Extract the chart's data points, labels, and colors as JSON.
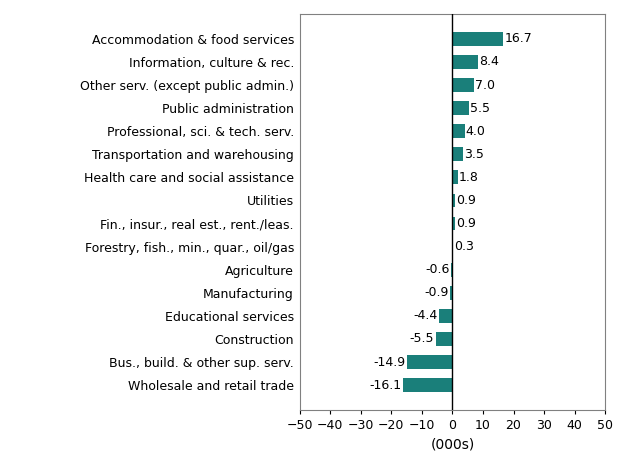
{
  "categories": [
    "Wholesale and retail trade",
    "Bus., build. & other sup. serv.",
    "Construction",
    "Educational services",
    "Manufacturing",
    "Agriculture",
    "Forestry, fish., min., quar., oil/gas",
    "Fin., insur., real est., rent./leas.",
    "Utilities",
    "Health care and social assistance",
    "Transportation and warehousing",
    "Professional, sci. & tech. serv.",
    "Public administration",
    "Other serv. (except public admin.)",
    "Information, culture & rec.",
    "Accommodation & food services"
  ],
  "values": [
    -16.1,
    -14.9,
    -5.5,
    -4.4,
    -0.9,
    -0.6,
    0.3,
    0.9,
    0.9,
    1.8,
    3.5,
    4.0,
    5.5,
    7.0,
    8.4,
    16.7
  ],
  "bar_color": "#1a7f7a",
  "xlabel": "(000s)",
  "xlim": [
    -50,
    50
  ],
  "xticks": [
    -50,
    -40,
    -30,
    -20,
    -10,
    0,
    10,
    20,
    30,
    40,
    50
  ],
  "background_color": "#ffffff",
  "plot_bg_color": "#ffffff",
  "label_fontsize": 9.0,
  "xlabel_fontsize": 10,
  "tick_fontsize": 9,
  "bar_height": 0.6
}
